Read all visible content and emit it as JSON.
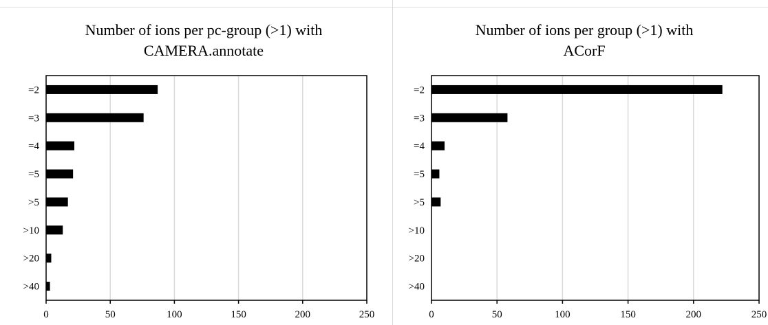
{
  "chart_data": [
    {
      "type": "bar",
      "orientation": "horizontal",
      "title_lines": [
        "Number of ions per pc-group (>1) with",
        "CAMERA.annotate"
      ],
      "categories": [
        "=2",
        "=3",
        "=4",
        "=5",
        ">5",
        ">10",
        ">20",
        ">40"
      ],
      "values": [
        87,
        76,
        22,
        21,
        17,
        13,
        4,
        3
      ],
      "xlim": [
        0,
        250
      ],
      "xticks": [
        "0",
        "50",
        "100",
        "150",
        "200",
        "250"
      ],
      "grid": true,
      "bar_color": "#000000"
    },
    {
      "type": "bar",
      "orientation": "horizontal",
      "title_lines": [
        "Number of ions per group (>1) with",
        "ACorF"
      ],
      "categories": [
        "=2",
        "=3",
        "=4",
        "=5",
        ">5",
        ">10",
        ">20",
        ">40"
      ],
      "values": [
        222,
        58,
        10,
        6,
        7,
        0,
        0,
        0
      ],
      "xlim": [
        0,
        250
      ],
      "xticks": [
        "0",
        "50",
        "100",
        "150",
        "200",
        "250"
      ],
      "grid": true,
      "bar_color": "#000000"
    }
  ]
}
